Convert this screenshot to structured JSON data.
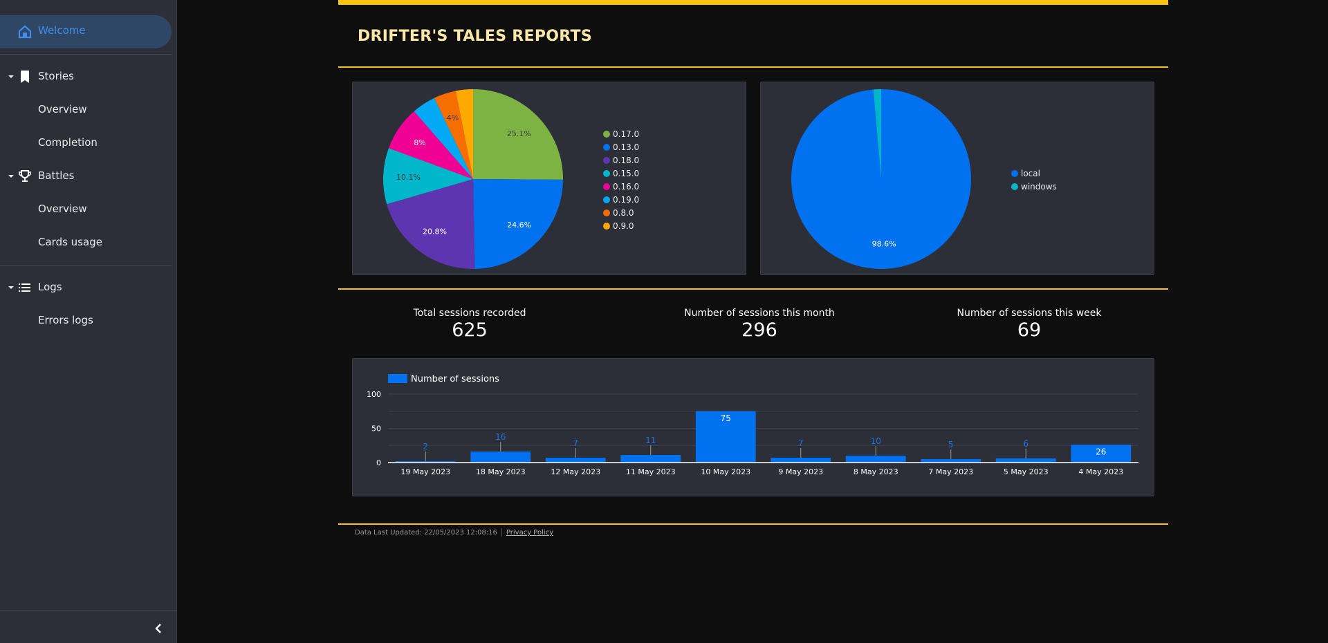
{
  "sidebar": {
    "active": {
      "label": "Welcome",
      "icon": "home-icon"
    },
    "groups": [
      {
        "label": "Stories",
        "icon": "bookmark-icon",
        "items": [
          {
            "label": "Overview"
          },
          {
            "label": "Completion"
          }
        ]
      },
      {
        "label": "Battles",
        "icon": "trophy-icon",
        "items": [
          {
            "label": "Overview"
          },
          {
            "label": "Cards usage"
          }
        ]
      },
      {
        "label": "Logs",
        "icon": "list-icon",
        "items": [
          {
            "label": "Errors logs"
          }
        ]
      }
    ],
    "collapse_icon": "chevron-left-icon"
  },
  "header": {
    "title": "DRIFTER'S TALES REPORTS"
  },
  "colors": {
    "accent": "#ffc20e",
    "title": "#fbe8a6",
    "bar": "#0072f0",
    "panel": "#2d2f38",
    "sidebar_active": "#3d8ef0"
  },
  "stats": [
    {
      "label": "Total sessions recorded",
      "value": "625"
    },
    {
      "label": "Number of sessions this month",
      "value": "296"
    },
    {
      "label": "Number of sessions this week",
      "value": "69"
    }
  ],
  "footer": {
    "updated": "Data Last Updated: 22/05/2023 12:08:16",
    "privacy": "Privacy Policy"
  },
  "chart_data": [
    {
      "type": "pie",
      "title": "",
      "legend_position": "right",
      "slices": [
        {
          "label": "0.17.0",
          "value": 25.1,
          "display": "25.1%",
          "color": "#7cb342",
          "text_color": "#3a3a3a"
        },
        {
          "label": "0.13.0",
          "value": 24.6,
          "display": "24.6%",
          "color": "#0072f0",
          "text_color": "#ffffff"
        },
        {
          "label": "0.18.0",
          "value": 20.8,
          "display": "20.8%",
          "color": "#5e35b1",
          "text_color": "#ffffff"
        },
        {
          "label": "0.15.0",
          "value": 10.1,
          "display": "10.1%",
          "color": "#00b6cb",
          "text_color": "#3a3a3a"
        },
        {
          "label": "0.16.0",
          "value": 8.0,
          "display": "8%",
          "color": "#f10096",
          "text_color": "#ffffff"
        },
        {
          "label": "0.19.0",
          "value": 4.3,
          "display": "",
          "color": "#03a9f4",
          "text_color": "#3a3a3a"
        },
        {
          "label": "0.8.0",
          "value": 4.0,
          "display": "4%",
          "color": "#f66d00",
          "text_color": "#3a3a3a"
        },
        {
          "label": "0.9.0",
          "value": 3.1,
          "display": "",
          "color": "#ffa800",
          "text_color": "#3a3a3a"
        }
      ]
    },
    {
      "type": "pie",
      "title": "",
      "legend_position": "right",
      "slices": [
        {
          "label": "local",
          "value": 98.6,
          "display": "98.6%",
          "color": "#0072f0",
          "text_color": "#ffffff"
        },
        {
          "label": "windows",
          "value": 1.4,
          "display": "",
          "color": "#00b6cb",
          "text_color": "#3a3a3a"
        }
      ]
    },
    {
      "type": "bar",
      "title": "",
      "xlabel": "",
      "ylabel": "",
      "legend": [
        "Number of sessions"
      ],
      "legend_position": "top-left",
      "ylim": [
        0,
        100
      ],
      "yticks": [
        0,
        50,
        100
      ],
      "grid": true,
      "categories": [
        "19 May 2023",
        "18 May 2023",
        "12 May 2023",
        "11 May 2023",
        "10 May 2023",
        "9 May 2023",
        "8 May 2023",
        "7 May 2023",
        "5 May 2023",
        "4 May 2023"
      ],
      "series": [
        {
          "name": "Number of sessions",
          "values": [
            2,
            16,
            7,
            11,
            75,
            7,
            10,
            5,
            6,
            26
          ],
          "color": "#0072f0"
        }
      ]
    }
  ]
}
